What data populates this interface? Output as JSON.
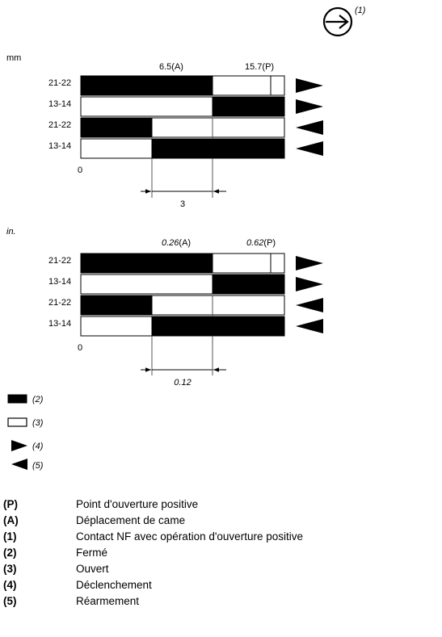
{
  "header": {
    "symbol_ref": "(1)"
  },
  "sections": [
    {
      "unit": "mm",
      "unit_italic": false,
      "marker_a_value": "6.5",
      "marker_a_suffix": "(A)",
      "marker_p_value": "15.7",
      "marker_p_suffix": "(P)",
      "rows": [
        "21-22",
        "13-14",
        "21-22",
        "13-14"
      ],
      "zero": "0",
      "dimension": "3"
    },
    {
      "unit": "in.",
      "unit_italic": true,
      "marker_a_value": "0.26",
      "marker_a_suffix": "(A)",
      "marker_p_value": "0.62",
      "marker_p_suffix": "(P)",
      "rows": [
        "21-22",
        "13-14",
        "21-22",
        "13-14"
      ],
      "zero": "0",
      "dimension": "0.12"
    }
  ],
  "symbol_legend": [
    "(2)",
    "(3)",
    "(4)",
    "(5)"
  ],
  "legend": [
    {
      "key": "(P)",
      "text": "Point d'ouverture positive"
    },
    {
      "key": "(A)",
      "text": "Déplacement de came"
    },
    {
      "key": "(1)",
      "text": "Contact NF avec opération d'ouverture positive"
    },
    {
      "key": "(2)",
      "text": "Fermé"
    },
    {
      "key": "(3)",
      "text": "Ouvert"
    },
    {
      "key": "(4)",
      "text": "Déclenchement"
    },
    {
      "key": "(5)",
      "text": "Réarmement"
    }
  ],
  "colors": {
    "ink": "#000000",
    "paper": "#ffffff",
    "guide": "#555555"
  }
}
